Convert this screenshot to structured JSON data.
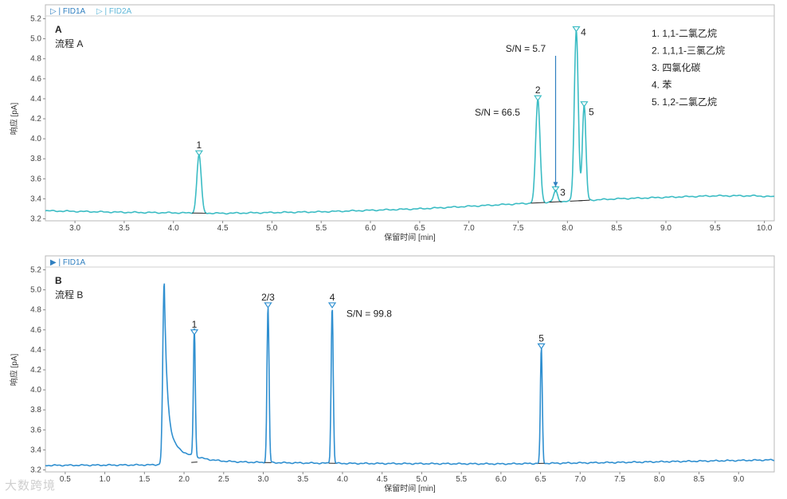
{
  "chart_data": [
    {
      "type": "line",
      "panel_label": "A",
      "subtitle": "流程 A",
      "header_tabs": [
        "▷ | FID1A",
        "▷ | FID2A"
      ],
      "xlabel": "保留时间 [min]",
      "ylabel": "响应 [pA]",
      "xlim": [
        2.7,
        10.1
      ],
      "ylim": [
        3.18,
        5.22
      ],
      "xticks": [
        "3.0",
        "3.5",
        "4.0",
        "4.5",
        "5.0",
        "5.5",
        "6.0",
        "6.5",
        "7.0",
        "7.5",
        "8.0",
        "8.5",
        "9.0",
        "9.5",
        "10.0"
      ],
      "yticks": [
        "3.2",
        "3.4",
        "3.6",
        "3.8",
        "4.0",
        "4.2",
        "4.4",
        "4.6",
        "4.8",
        "5.0",
        "5.2"
      ],
      "baseline": [
        [
          2.7,
          3.28
        ],
        [
          3.5,
          3.265
        ],
        [
          4.5,
          3.255
        ],
        [
          5.5,
          3.27
        ],
        [
          6.5,
          3.3
        ],
        [
          7.5,
          3.35
        ],
        [
          8.5,
          3.4
        ],
        [
          9.5,
          3.43
        ],
        [
          9.9,
          3.43
        ],
        [
          10.1,
          3.42
        ]
      ],
      "peaks": [
        {
          "label": "1",
          "x": 4.26,
          "y": 3.84,
          "width": 0.022
        },
        {
          "label": "2",
          "x": 7.7,
          "y": 4.39,
          "width": 0.022
        },
        {
          "label": "3",
          "x": 7.88,
          "y": 3.48,
          "width": 0.02
        },
        {
          "label": "4",
          "x": 8.09,
          "y": 5.08,
          "width": 0.02
        },
        {
          "label": "5",
          "x": 8.17,
          "y": 4.33,
          "width": 0.018
        }
      ],
      "annotations": [
        {
          "text": "S/N = 66.5",
          "x": 7.52,
          "y": 4.23
        },
        {
          "text": "S/N = 5.7",
          "x": 7.78,
          "y": 4.87
        }
      ],
      "legend": [
        "1. 1,1-二氯乙烷",
        "2. 1,1,1-三氯乙烷",
        "3. 四氯化碳",
        "4. 苯",
        "5. 1,2-二氯乙烷"
      ],
      "color": "#3bbcc4"
    },
    {
      "type": "line",
      "panel_label": "B",
      "subtitle": "流程 B",
      "header_tabs": [
        "▶ | FID1A"
      ],
      "xlabel": "保留时间 [min]",
      "ylabel": "响应 [pA]",
      "xlim": [
        0.25,
        9.45
      ],
      "ylim": [
        3.18,
        5.22
      ],
      "xticks": [
        "0.5",
        "1.0",
        "1.5",
        "2.0",
        "2.5",
        "3.0",
        "3.5",
        "4.0",
        "4.5",
        "5.0",
        "5.5",
        "6.0",
        "6.5",
        "7.0",
        "7.5",
        "8.0",
        "8.5",
        "9.0"
      ],
      "yticks": [
        "3.2",
        "3.4",
        "3.6",
        "3.8",
        "4.0",
        "4.2",
        "4.4",
        "4.6",
        "4.8",
        "5.0",
        "5.2"
      ],
      "baseline": [
        [
          0.25,
          3.245
        ],
        [
          1.6,
          3.25
        ],
        [
          2.2,
          3.28
        ],
        [
          4.0,
          3.265
        ],
        [
          6.0,
          3.26
        ],
        [
          7.5,
          3.275
        ],
        [
          9.45,
          3.3
        ]
      ],
      "peaks": [
        {
          "label": "1",
          "x": 2.13,
          "y": 4.56,
          "width": 0.012
        },
        {
          "label": "2/3",
          "x": 3.06,
          "y": 4.83,
          "width": 0.013
        },
        {
          "label": "4",
          "x": 3.87,
          "y": 4.83,
          "width": 0.013
        },
        {
          "label": "5",
          "x": 6.51,
          "y": 4.42,
          "width": 0.012
        }
      ],
      "solvent_peak": {
        "x": 1.75,
        "y": 5.09
      },
      "annotations": [
        {
          "text": "S/N = 99.8",
          "x": 4.05,
          "y": 4.73
        }
      ],
      "color": "#2f8fd0"
    }
  ],
  "watermark": "大数跨境"
}
